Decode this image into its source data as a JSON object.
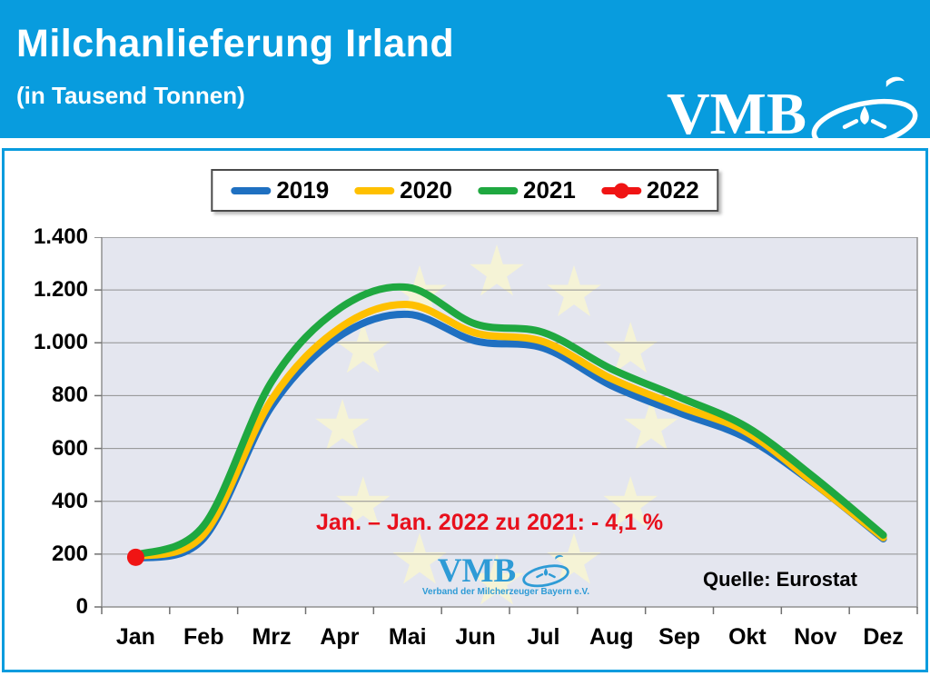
{
  "header": {
    "title": "Milchanlieferung Irland",
    "subtitle": "(in Tausend Tonnen)",
    "logo_text": "VMB"
  },
  "colors": {
    "accent_blue": "#089CDE",
    "plot_bg": "#E4E6EF",
    "star": "#F5F3D6",
    "gridline": "#909090",
    "axis_tick": "#707070",
    "annotation_red": "#E8101C",
    "watermark_blue": "#2E9BD6"
  },
  "chart_data": {
    "type": "line",
    "title": "Milchanlieferung Irland (in Tausend Tonnen)",
    "categories": [
      "Jan",
      "Feb",
      "Mrz",
      "Apr",
      "Mai",
      "Jun",
      "Jul",
      "Aug",
      "Sep",
      "Okt",
      "Nov",
      "Dez"
    ],
    "series": [
      {
        "name": "2019",
        "color": "#1F70C1",
        "values": [
          183,
          260,
          760,
          1025,
          1108,
          1007,
          980,
          838,
          735,
          638,
          463,
          258
        ]
      },
      {
        "name": "2020",
        "color": "#FFC000",
        "values": [
          190,
          275,
          785,
          1056,
          1145,
          1037,
          1004,
          864,
          760,
          660,
          465,
          262
        ]
      },
      {
        "name": "2021",
        "color": "#1FA840",
        "values": [
          196,
          308,
          853,
          1130,
          1210,
          1071,
          1039,
          901,
          794,
          680,
          487,
          272
        ]
      },
      {
        "name": "2022",
        "color": "#F01414",
        "values": [
          188
        ],
        "marker": "dot"
      }
    ],
    "ylim": [
      0,
      1400
    ],
    "yticks": [
      "0",
      "200",
      "400",
      "600",
      "800",
      "1.000",
      "1.200",
      "1.400"
    ],
    "grid": true,
    "legend_position": "top-center",
    "xlabel": "",
    "ylabel": ""
  },
  "annotation": {
    "text": "Jan. – Jan. 2022 zu 2021: - 4,1 %"
  },
  "source": {
    "text": "Quelle: Eurostat"
  },
  "watermark": {
    "text": "VMB",
    "subtext": "Verband der Milcherzeuger Bayern e.V."
  }
}
